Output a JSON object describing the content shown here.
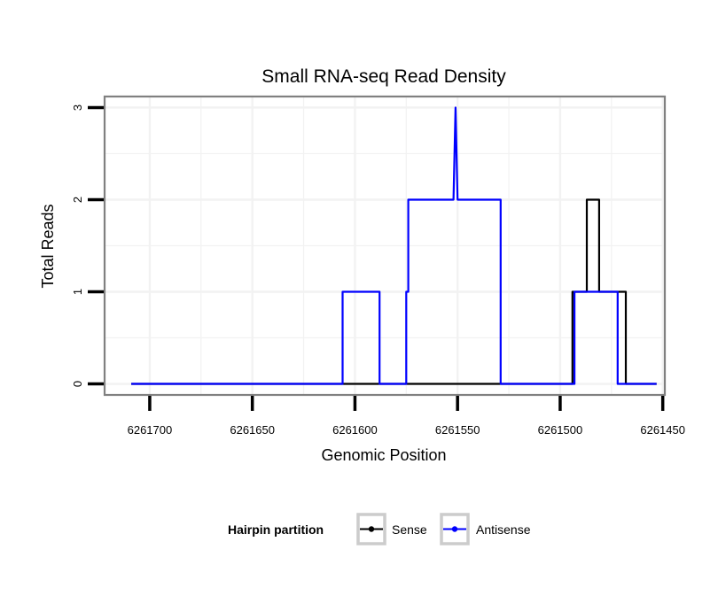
{
  "chart_data": {
    "type": "line",
    "title": "Small RNA-seq Read Density",
    "xlabel": "Genomic Position",
    "ylabel": "Total Reads",
    "xlim": [
      6261722,
      6261449
    ],
    "ylim": [
      -0.12,
      3.12
    ],
    "x_reversed": true,
    "x_ticks": [
      6261700,
      6261650,
      6261600,
      6261550,
      6261500,
      6261450
    ],
    "x_tick_labels": [
      "6261700",
      "6261650",
      "6261600",
      "6261550",
      "6261500",
      "6261450"
    ],
    "y_ticks": [
      0,
      1,
      2,
      3
    ],
    "y_tick_labels": [
      "0",
      "1",
      "2",
      "3"
    ],
    "grid": true,
    "legend_title": "Hairpin partition",
    "legend_position": "bottom",
    "series": [
      {
        "name": "Sense",
        "color": "#000000",
        "points": [
          [
            6261709,
            0
          ],
          [
            6261494,
            0
          ],
          [
            6261494,
            1
          ],
          [
            6261487,
            1
          ],
          [
            6261487,
            2
          ],
          [
            6261481,
            2
          ],
          [
            6261481,
            1
          ],
          [
            6261468,
            1
          ],
          [
            6261468,
            0
          ],
          [
            6261453,
            0
          ]
        ]
      },
      {
        "name": "Antisense",
        "color": "#0000ff",
        "points": [
          [
            6261709,
            0
          ],
          [
            6261606,
            0
          ],
          [
            6261606,
            1
          ],
          [
            6261588,
            1
          ],
          [
            6261588,
            0
          ],
          [
            6261575,
            0
          ],
          [
            6261575,
            1
          ],
          [
            6261574,
            1
          ],
          [
            6261574,
            2
          ],
          [
            6261552,
            2
          ],
          [
            6261551,
            3
          ],
          [
            6261550,
            2
          ],
          [
            6261529,
            2
          ],
          [
            6261529,
            0
          ],
          [
            6261493,
            0
          ],
          [
            6261493,
            1
          ],
          [
            6261472,
            1
          ],
          [
            6261472,
            0
          ],
          [
            6261453,
            0
          ]
        ]
      }
    ]
  },
  "colors": {
    "panel_border": "#808080",
    "grid": "#f2f2f2",
    "axis_ticks": "#000000"
  }
}
